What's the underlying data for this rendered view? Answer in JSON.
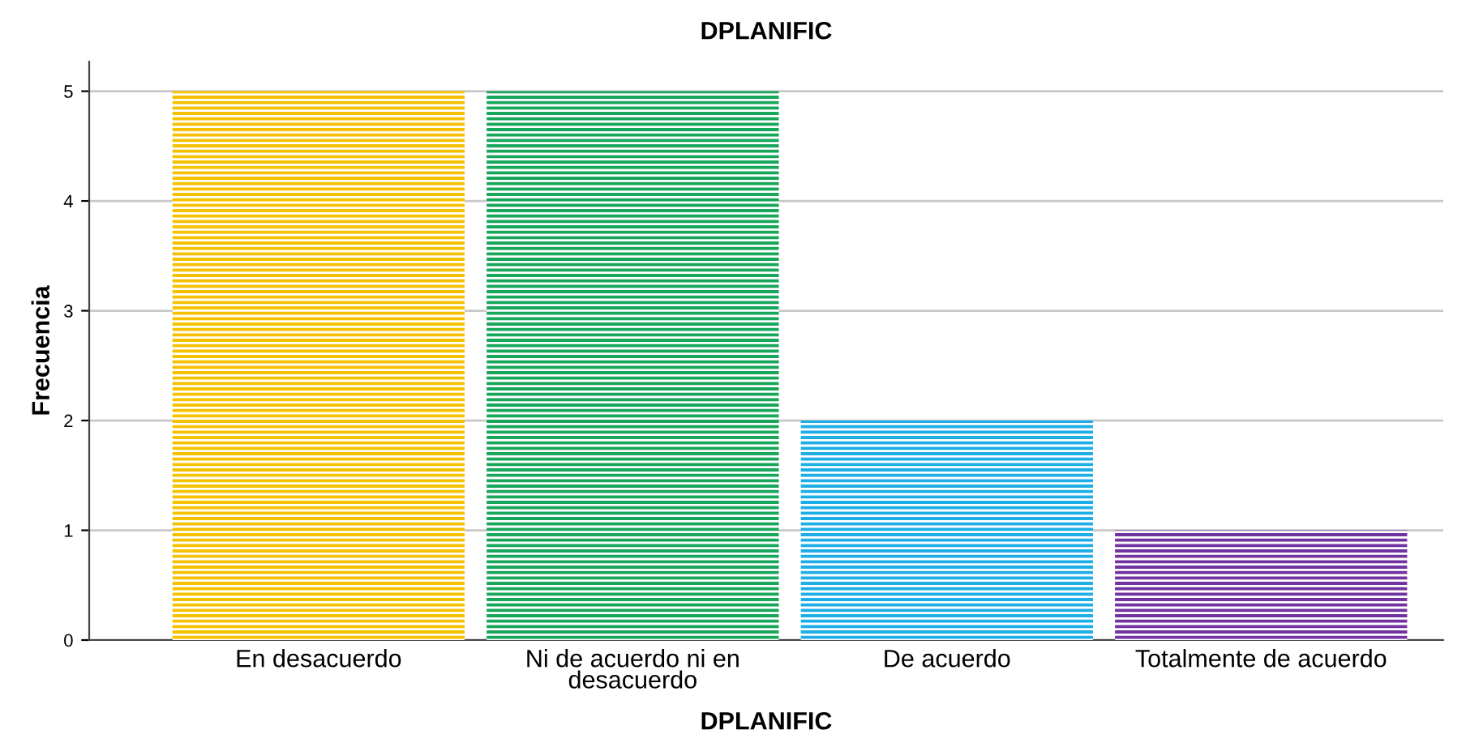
{
  "chart_data": {
    "type": "bar",
    "title": "DPLANIFIC",
    "xlabel": "DPLANIFIC",
    "ylabel": "Frecuencia",
    "categories": [
      "En desacuerdo",
      "Ni de acuerdo ni en\ndesacuerdo",
      "De acuerdo",
      "Totalmente de acuerdo"
    ],
    "values": [
      5,
      5,
      2,
      1
    ],
    "colors": [
      "#f5c100",
      "#17a65a",
      "#1eaee6",
      "#7232a0"
    ],
    "ylim": [
      0,
      5.27
    ],
    "yticks": [
      0,
      1,
      2,
      3,
      4,
      5
    ],
    "grid": "y"
  }
}
